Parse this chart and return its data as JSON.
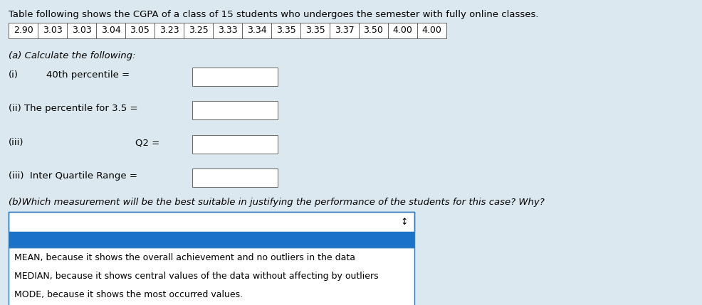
{
  "background_color": "#dce8f0",
  "title_text": "Table following shows the CGPA of a class of 15 students who undergoes the semester with fully online classes.",
  "table_values": [
    "2.90",
    "3.03",
    "3.03",
    "3.04",
    "3.05",
    "3.23",
    "3.25",
    "3.33",
    "3.34",
    "3.35",
    "3.35",
    "3.37",
    "3.50",
    "4.00",
    "4.00"
  ],
  "section_a_label": "(a) Calculate the following:",
  "q_labels": [
    "(i)",
    "(ii)",
    "(iii)",
    "(iii)"
  ],
  "q_label_texts": [
    "",
    "The percentile for 3.5 =",
    "",
    "Inter Quartile Range ="
  ],
  "q_indent_texts": [
    "40th percentile =",
    "",
    "Q2 =",
    ""
  ],
  "section_b_label": "(b)Which measurement will be the best suitable in justifying the performance of the students for this case? Why?",
  "dropdown_box_color": "#ffffff",
  "dropdown_selected_color": "#1a73c9",
  "dropdown_options": [
    "MEAN, because it shows the overall achievement and no outliers in the data",
    "MEDIAN, because it shows central values of the data without affecting by outliers",
    "MODE, because it shows the most occurred values."
  ],
  "text_color": "#000000",
  "input_box_color": "#ffffff",
  "font_size": 9.5,
  "table_font_size": 9.0
}
